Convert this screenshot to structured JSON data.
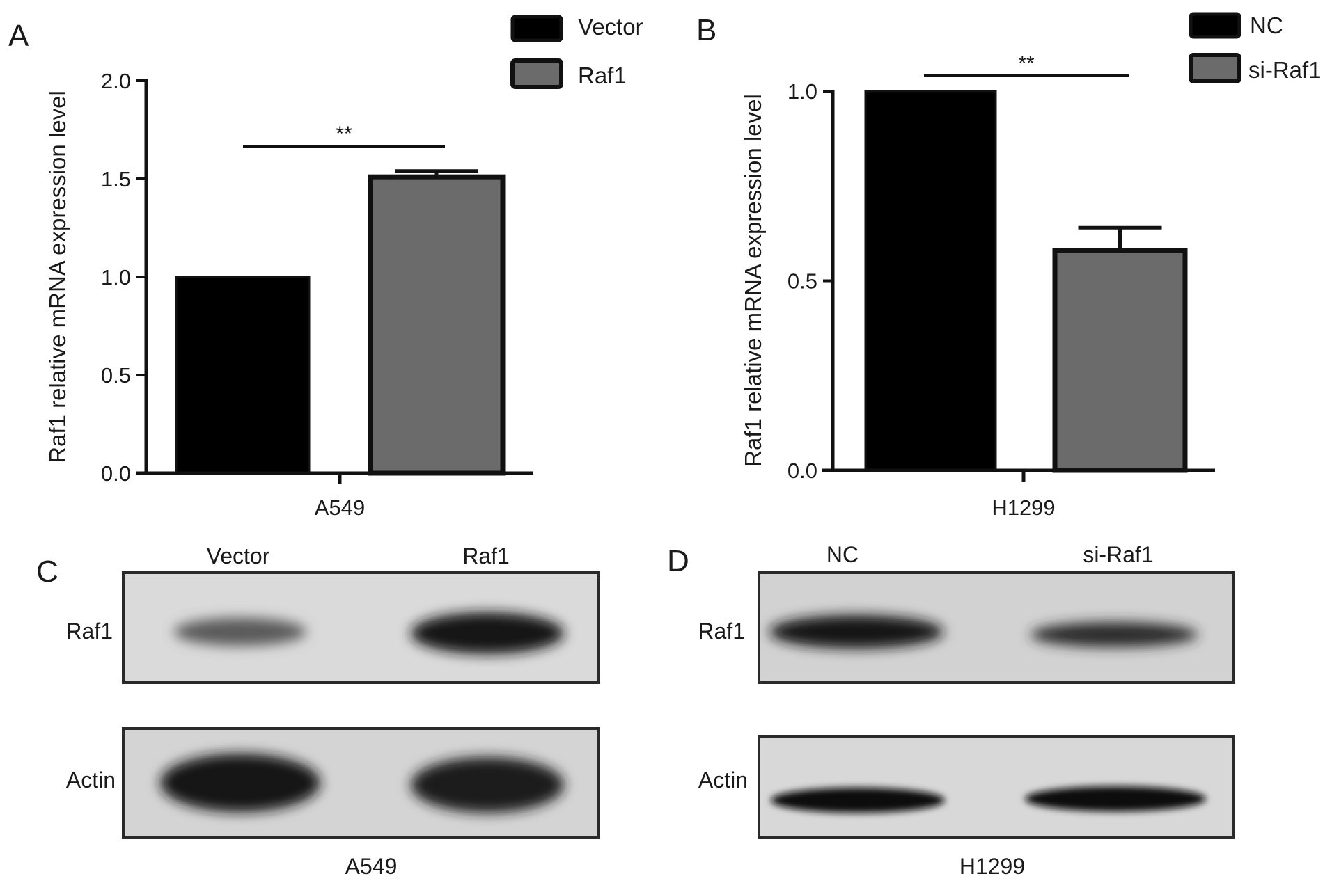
{
  "chart_data": [
    {
      "panel": "A",
      "type": "bar",
      "categories": [
        "A549"
      ],
      "series": [
        {
          "name": "Vector",
          "values": [
            1.0
          ],
          "error": [
            0.0
          ],
          "color": "#000000"
        },
        {
          "name": "Raf1",
          "values": [
            1.51
          ],
          "error": [
            0.03
          ],
          "color": "#6b6b6b"
        }
      ],
      "xlabel": "A549",
      "ylabel": "Raf1 relative mRNA expression level",
      "ylim": [
        0,
        2.0
      ],
      "yticks": [
        "0.0",
        "0.5",
        "1.0",
        "1.5",
        "2.0"
      ],
      "significance": "**",
      "legend": "top-right",
      "grid": false
    },
    {
      "panel": "B",
      "type": "bar",
      "categories": [
        "H1299"
      ],
      "series": [
        {
          "name": "NC",
          "values": [
            1.0
          ],
          "error": [
            0.0
          ],
          "color": "#000000"
        },
        {
          "name": "si-Raf1",
          "values": [
            0.58
          ],
          "error": [
            0.06
          ],
          "color": "#6b6b6b"
        }
      ],
      "xlabel": "H1299",
      "ylabel": "Raf1 relative mRNA expression level",
      "ylim": [
        0,
        1.0
      ],
      "yticks": [
        "0.0",
        "0.5",
        "1.0"
      ],
      "significance": "**",
      "legend": "top-right",
      "grid": false
    }
  ],
  "blots": [
    {
      "panel": "C",
      "lanes": [
        "Vector",
        "Raf1"
      ],
      "rows": [
        "Raf1",
        "Actin"
      ],
      "caption": "A549"
    },
    {
      "panel": "D",
      "lanes": [
        "NC",
        "si-Raf1"
      ],
      "rows": [
        "Raf1",
        "Actin"
      ],
      "caption": "H1299"
    }
  ]
}
